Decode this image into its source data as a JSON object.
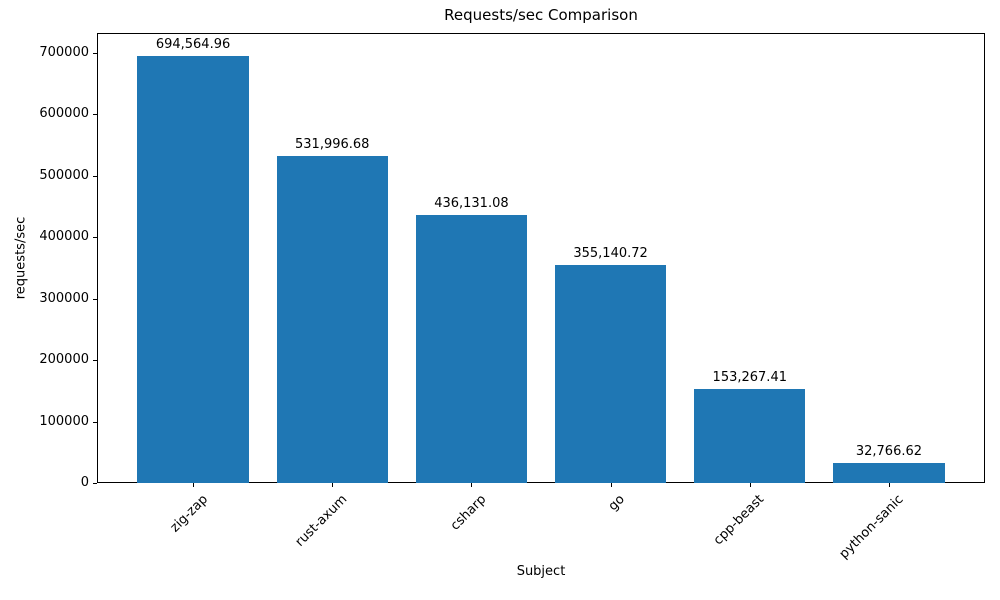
{
  "figure": {
    "title": "Requests/sec Comparison",
    "xlabel": "Subject",
    "ylabel": "requests/sec"
  },
  "chart_data": {
    "type": "bar",
    "title": "Requests/sec Comparison",
    "xlabel": "Subject",
    "ylabel": "requests/sec",
    "categories": [
      "zig-zap",
      "rust-axum",
      "csharp",
      "go",
      "cpp-beast",
      "python-sanic"
    ],
    "values": [
      694564.96,
      531996.68,
      436131.08,
      355140.72,
      153267.41,
      32766.62
    ],
    "value_labels": [
      "694,564.96",
      "531,996.68",
      "436,131.08",
      "355,140.72",
      "153,267.41",
      "32,766.62"
    ],
    "yticks": [
      0,
      100000,
      200000,
      300000,
      400000,
      500000,
      600000,
      700000
    ],
    "ytick_labels": [
      "0",
      "100000",
      "200000",
      "300000",
      "400000",
      "500000",
      "600000",
      "700000"
    ],
    "ylim": [
      0,
      732500
    ],
    "bar_color": "#1f77b4",
    "grid": false,
    "legend": null,
    "xtick_rotation_deg": 45
  }
}
